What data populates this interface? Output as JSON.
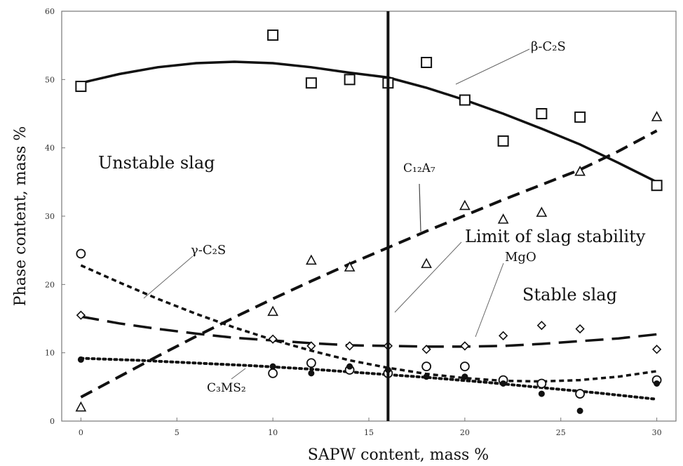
{
  "chart_data": {
    "type": "scatter",
    "xlabel": "SAPW content, mass %",
    "ylabel": "Phase content, mass %",
    "xlim": [
      -1,
      31
    ],
    "ylim": [
      0,
      60
    ],
    "xticks": [
      0,
      5,
      10,
      15,
      20,
      25,
      30
    ],
    "yticks": [
      0,
      10,
      20,
      30,
      40,
      50,
      60
    ],
    "grid": false,
    "vertical_line": {
      "x": 16
    },
    "annotations": {
      "unstable": "Unstable slag",
      "stable": "Stable slag",
      "limit": "Limit of slag stability",
      "beta": "β-C₂S",
      "gamma": "γ-C₂S",
      "c12a7": "C₁₂A₇",
      "mgo": "MgO",
      "c3ms2": "C₃MS₂"
    },
    "series": [
      {
        "key": "beta_c2s",
        "marker": "square",
        "line": "solid",
        "points": [
          [
            0,
            49
          ],
          [
            10,
            56.5
          ],
          [
            12,
            49.5
          ],
          [
            14,
            50
          ],
          [
            16,
            49.5
          ],
          [
            18,
            52.5
          ],
          [
            20,
            47
          ],
          [
            22,
            41
          ],
          [
            24,
            45
          ],
          [
            26,
            44.5
          ],
          [
            30,
            34.5
          ]
        ],
        "trend": [
          [
            0,
            49.5
          ],
          [
            2,
            50.8
          ],
          [
            4,
            51.8
          ],
          [
            6,
            52.4
          ],
          [
            8,
            52.6
          ],
          [
            10,
            52.4
          ],
          [
            12,
            51.8
          ],
          [
            14,
            51
          ],
          [
            16,
            50.3
          ],
          [
            18,
            48.8
          ],
          [
            20,
            47
          ],
          [
            22,
            45
          ],
          [
            24,
            42.8
          ],
          [
            26,
            40.5
          ],
          [
            28,
            37.8
          ],
          [
            30,
            35
          ]
        ]
      },
      {
        "key": "c12a7",
        "marker": "triangle",
        "line": "dashed",
        "points": [
          [
            0,
            2
          ],
          [
            10,
            16
          ],
          [
            12,
            23.5
          ],
          [
            14,
            22.5
          ],
          [
            18,
            23
          ],
          [
            20,
            31.5
          ],
          [
            22,
            29.5
          ],
          [
            24,
            30.5
          ],
          [
            26,
            36.5
          ],
          [
            30,
            44.5
          ]
        ],
        "trend": [
          [
            0,
            3.5
          ],
          [
            2,
            6.5
          ],
          [
            4,
            9.5
          ],
          [
            6,
            12.4
          ],
          [
            8,
            15.2
          ],
          [
            10,
            17.9
          ],
          [
            12,
            20.5
          ],
          [
            14,
            23
          ],
          [
            16,
            25.4
          ],
          [
            18,
            27.8
          ],
          [
            20,
            30.1
          ],
          [
            22,
            32.4
          ],
          [
            24,
            34.6
          ],
          [
            26,
            36.8
          ],
          [
            28,
            39.5
          ],
          [
            30,
            42.5
          ]
        ]
      },
      {
        "key": "gamma_c2s",
        "marker": "circle",
        "line": "short-dashed",
        "points": [
          [
            0,
            24.5
          ],
          [
            10,
            7
          ],
          [
            12,
            8.5
          ],
          [
            14,
            7.5
          ],
          [
            16,
            7
          ],
          [
            18,
            8
          ],
          [
            20,
            8
          ],
          [
            22,
            6
          ],
          [
            24,
            5.5
          ],
          [
            26,
            4
          ],
          [
            30,
            6
          ]
        ],
        "trend": [
          [
            0,
            22.8
          ],
          [
            2,
            20.3
          ],
          [
            4,
            17.9
          ],
          [
            6,
            15.7
          ],
          [
            8,
            13.7
          ],
          [
            10,
            11.9
          ],
          [
            12,
            10.3
          ],
          [
            14,
            8.9
          ],
          [
            16,
            7.8
          ],
          [
            18,
            6.9
          ],
          [
            20,
            6.3
          ],
          [
            22,
            5.9
          ],
          [
            24,
            5.8
          ],
          [
            26,
            6
          ],
          [
            28,
            6.5
          ],
          [
            30,
            7.3
          ]
        ]
      },
      {
        "key": "mgo",
        "marker": "diamond",
        "line": "long-dashed",
        "points": [
          [
            0,
            15.5
          ],
          [
            10,
            12
          ],
          [
            12,
            11
          ],
          [
            14,
            11
          ],
          [
            16,
            11
          ],
          [
            18,
            10.5
          ],
          [
            20,
            11
          ],
          [
            22,
            12.5
          ],
          [
            24,
            14
          ],
          [
            26,
            13.5
          ],
          [
            30,
            10.5
          ]
        ],
        "trend": [
          [
            0,
            15.3
          ],
          [
            2,
            14.3
          ],
          [
            4,
            13.5
          ],
          [
            6,
            12.8
          ],
          [
            8,
            12.2
          ],
          [
            10,
            11.8
          ],
          [
            12,
            11.4
          ],
          [
            14,
            11.1
          ],
          [
            16,
            11
          ],
          [
            18,
            10.9
          ],
          [
            20,
            10.9
          ],
          [
            22,
            11
          ],
          [
            24,
            11.3
          ],
          [
            26,
            11.7
          ],
          [
            28,
            12.1
          ],
          [
            30,
            12.7
          ]
        ]
      },
      {
        "key": "c3ms2",
        "marker": "filled-circle",
        "line": "dotted",
        "points": [
          [
            0,
            9
          ],
          [
            10,
            8
          ],
          [
            12,
            7
          ],
          [
            14,
            8
          ],
          [
            16,
            7.5
          ],
          [
            18,
            6.5
          ],
          [
            20,
            6.5
          ],
          [
            22,
            5.5
          ],
          [
            24,
            4
          ],
          [
            26,
            1.5
          ],
          [
            30,
            5.5
          ]
        ],
        "trend": [
          [
            0,
            9.2
          ],
          [
            3,
            8.9
          ],
          [
            6,
            8.5
          ],
          [
            9,
            8.1
          ],
          [
            12,
            7.6
          ],
          [
            15,
            7
          ],
          [
            18,
            6.4
          ],
          [
            21,
            5.7
          ],
          [
            24,
            4.9
          ],
          [
            27,
            4.1
          ],
          [
            30,
            3.2
          ]
        ]
      }
    ]
  }
}
